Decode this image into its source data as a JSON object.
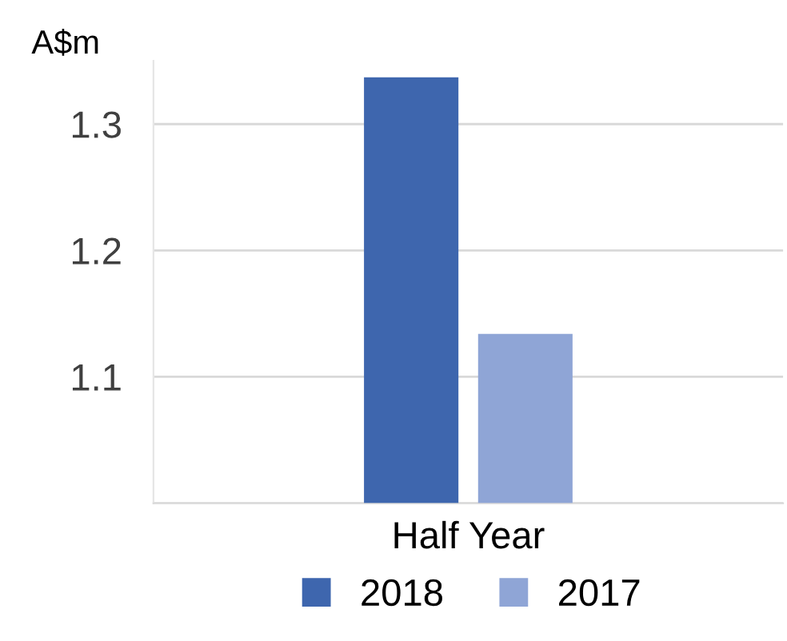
{
  "chart_data": {
    "type": "bar",
    "ylabel": "A$m",
    "categories": [
      "Half Year"
    ],
    "series": [
      {
        "name": "2018",
        "color": "#3e66ae",
        "values": [
          1.337
        ]
      },
      {
        "name": "2017",
        "color": "#8fa5d6",
        "values": [
          1.134
        ]
      }
    ],
    "ylim": [
      1.0,
      1.35
    ],
    "yticks": [
      {
        "value": 1.0,
        "label": null
      },
      1.1,
      1.2,
      1.3
    ],
    "grid": "y",
    "legend": "bottom"
  }
}
